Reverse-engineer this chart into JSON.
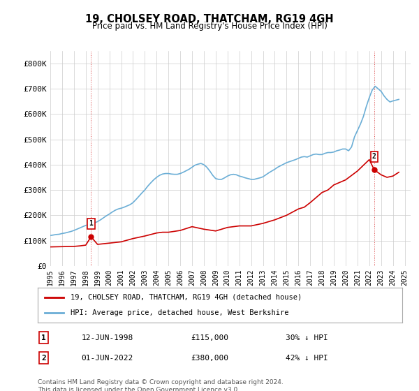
{
  "title": "19, CHOLSEY ROAD, THATCHAM, RG19 4GH",
  "subtitle": "Price paid vs. HM Land Registry's House Price Index (HPI)",
  "ylabel": "",
  "xlim_start": 1995.0,
  "xlim_end": 2025.5,
  "ylim": [
    0,
    850000
  ],
  "yticks": [
    0,
    100000,
    200000,
    300000,
    400000,
    500000,
    600000,
    700000,
    800000
  ],
  "ytick_labels": [
    "£0",
    "£100K",
    "£200K",
    "£300K",
    "£400K",
    "£500K",
    "£600K",
    "£700K",
    "£800K"
  ],
  "hpi_color": "#6baed6",
  "price_color": "#cc0000",
  "transaction1": {
    "date": "12-JUN-1998",
    "price": 115000,
    "label": "30% ↓ HPI",
    "num": "1",
    "year": 1998.45
  },
  "transaction2": {
    "date": "01-JUN-2022",
    "price": 380000,
    "label": "42% ↓ HPI",
    "num": "2",
    "year": 2022.42
  },
  "legend_price_label": "19, CHOLSEY ROAD, THATCHAM, RG19 4GH (detached house)",
  "legend_hpi_label": "HPI: Average price, detached house, West Berkshire",
  "footnote": "Contains HM Land Registry data © Crown copyright and database right 2024.\nThis data is licensed under the Open Government Licence v3.0.",
  "background_color": "#ffffff",
  "grid_color": "#cccccc",
  "xtick_years": [
    1995,
    1996,
    1997,
    1998,
    1999,
    2000,
    2001,
    2002,
    2003,
    2004,
    2005,
    2006,
    2007,
    2008,
    2009,
    2010,
    2011,
    2012,
    2013,
    2014,
    2015,
    2016,
    2017,
    2018,
    2019,
    2020,
    2021,
    2022,
    2023,
    2024,
    2025
  ],
  "hpi_data": {
    "years": [
      1995.0,
      1995.25,
      1995.5,
      1995.75,
      1996.0,
      1996.25,
      1996.5,
      1996.75,
      1997.0,
      1997.25,
      1997.5,
      1997.75,
      1998.0,
      1998.25,
      1998.5,
      1998.75,
      1999.0,
      1999.25,
      1999.5,
      1999.75,
      2000.0,
      2000.25,
      2000.5,
      2000.75,
      2001.0,
      2001.25,
      2001.5,
      2001.75,
      2002.0,
      2002.25,
      2002.5,
      2002.75,
      2003.0,
      2003.25,
      2003.5,
      2003.75,
      2004.0,
      2004.25,
      2004.5,
      2004.75,
      2005.0,
      2005.25,
      2005.5,
      2005.75,
      2006.0,
      2006.25,
      2006.5,
      2006.75,
      2007.0,
      2007.25,
      2007.5,
      2007.75,
      2008.0,
      2008.25,
      2008.5,
      2008.75,
      2009.0,
      2009.25,
      2009.5,
      2009.75,
      2010.0,
      2010.25,
      2010.5,
      2010.75,
      2011.0,
      2011.25,
      2011.5,
      2011.75,
      2012.0,
      2012.25,
      2012.5,
      2012.75,
      2013.0,
      2013.25,
      2013.5,
      2013.75,
      2014.0,
      2014.25,
      2014.5,
      2014.75,
      2015.0,
      2015.25,
      2015.5,
      2015.75,
      2016.0,
      2016.25,
      2016.5,
      2016.75,
      2017.0,
      2017.25,
      2017.5,
      2017.75,
      2018.0,
      2018.25,
      2018.5,
      2018.75,
      2019.0,
      2019.25,
      2019.5,
      2019.75,
      2020.0,
      2020.25,
      2020.5,
      2020.75,
      2021.0,
      2021.25,
      2021.5,
      2021.75,
      2022.0,
      2022.25,
      2022.5,
      2022.75,
      2023.0,
      2023.25,
      2023.5,
      2023.75,
      2024.0,
      2024.25,
      2024.5
    ],
    "values": [
      120000,
      122000,
      124000,
      125000,
      128000,
      130000,
      133000,
      136000,
      140000,
      145000,
      150000,
      155000,
      160000,
      163000,
      166000,
      170000,
      175000,
      182000,
      190000,
      198000,
      205000,
      213000,
      220000,
      225000,
      228000,
      232000,
      237000,
      242000,
      250000,
      262000,
      275000,
      288000,
      300000,
      315000,
      328000,
      340000,
      350000,
      358000,
      363000,
      365000,
      365000,
      363000,
      362000,
      362000,
      365000,
      370000,
      376000,
      382000,
      390000,
      398000,
      402000,
      405000,
      400000,
      390000,
      375000,
      358000,
      345000,
      342000,
      342000,
      348000,
      355000,
      360000,
      362000,
      360000,
      355000,
      352000,
      348000,
      345000,
      342000,
      342000,
      345000,
      348000,
      352000,
      360000,
      368000,
      375000,
      382000,
      390000,
      396000,
      402000,
      408000,
      412000,
      416000,
      420000,
      425000,
      430000,
      432000,
      430000,
      435000,
      440000,
      442000,
      440000,
      440000,
      445000,
      448000,
      448000,
      450000,
      455000,
      458000,
      462000,
      462000,
      455000,
      470000,
      510000,
      535000,
      560000,
      590000,
      630000,
      665000,
      695000,
      710000,
      700000,
      690000,
      672000,
      658000,
      648000,
      652000,
      655000,
      658000
    ]
  },
  "price_data": {
    "years": [
      1995.0,
      1996.0,
      1997.0,
      1997.5,
      1998.0,
      1998.45,
      1999.0,
      2000.0,
      2001.0,
      2002.0,
      2003.0,
      2004.0,
      2004.5,
      2005.0,
      2006.0,
      2007.0,
      2008.0,
      2009.0,
      2009.5,
      2010.0,
      2011.0,
      2012.0,
      2013.0,
      2014.0,
      2015.0,
      2016.0,
      2016.5,
      2017.0,
      2018.0,
      2018.5,
      2019.0,
      2020.0,
      2021.0,
      2022.0,
      2022.42,
      2023.0,
      2023.5,
      2024.0,
      2024.5
    ],
    "values": [
      75000,
      76000,
      77000,
      79000,
      82000,
      115000,
      85000,
      90000,
      95000,
      108000,
      118000,
      130000,
      133000,
      133000,
      140000,
      155000,
      145000,
      138000,
      145000,
      152000,
      158000,
      158000,
      168000,
      182000,
      200000,
      225000,
      232000,
      250000,
      290000,
      300000,
      320000,
      340000,
      375000,
      420000,
      380000,
      360000,
      350000,
      355000,
      370000
    ]
  }
}
